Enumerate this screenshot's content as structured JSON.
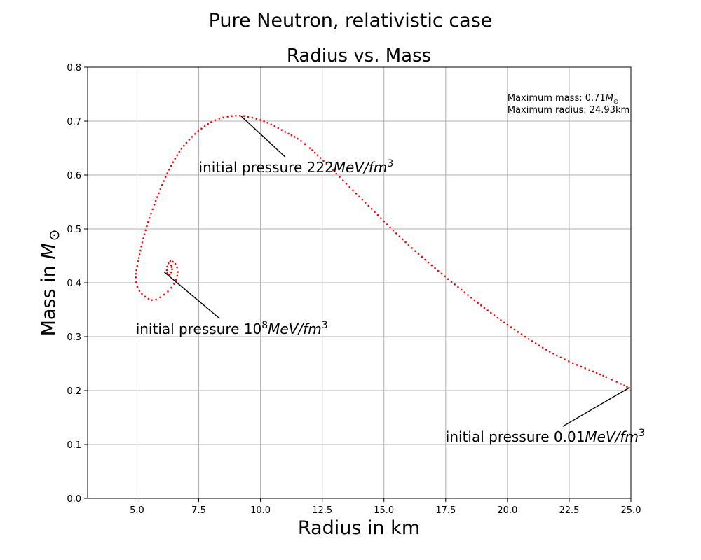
{
  "chart_data": {
    "type": "scatter",
    "suptitle": "Pure Neutron, relativistic case",
    "title": "Radius vs. Mass",
    "xlabel": "Radius in km",
    "ylabel_text": "Mass in ",
    "ylabel_math": "M",
    "ylabel_sub": "⊙",
    "xlim": [
      3.0,
      25.0
    ],
    "ylim": [
      0.0,
      0.8
    ],
    "xticks": [
      "5.0",
      "7.5",
      "10.0",
      "12.5",
      "15.0",
      "17.5",
      "20.0",
      "22.5",
      "25.0"
    ],
    "yticks": [
      "0.0",
      "0.1",
      "0.2",
      "0.3",
      "0.4",
      "0.5",
      "0.6",
      "0.7",
      "0.8"
    ],
    "grid": true,
    "marker_color": "#ff0000",
    "curve_knots": [
      [
        24.93,
        0.205
      ],
      [
        24.0,
        0.225
      ],
      [
        22.0,
        0.265
      ],
      [
        20.0,
        0.322
      ],
      [
        18.0,
        0.392
      ],
      [
        16.0,
        0.47
      ],
      [
        14.0,
        0.56
      ],
      [
        12.0,
        0.65
      ],
      [
        11.0,
        0.68
      ],
      [
        10.0,
        0.702
      ],
      [
        9.0,
        0.71
      ],
      [
        8.0,
        0.698
      ],
      [
        7.0,
        0.66
      ],
      [
        6.3,
        0.61
      ],
      [
        5.7,
        0.545
      ],
      [
        5.3,
        0.49
      ],
      [
        5.05,
        0.44
      ],
      [
        4.95,
        0.41
      ],
      [
        5.1,
        0.385
      ],
      [
        5.6,
        0.368
      ],
      [
        6.1,
        0.378
      ],
      [
        6.5,
        0.398
      ],
      [
        6.65,
        0.42
      ],
      [
        6.55,
        0.435
      ],
      [
        6.35,
        0.44
      ],
      [
        6.22,
        0.43
      ],
      [
        6.22,
        0.418
      ],
      [
        6.32,
        0.415
      ],
      [
        6.42,
        0.425
      ],
      [
        6.38,
        0.432
      ]
    ],
    "annotations": [
      {
        "prefix": "initial pressure 222",
        "math": "MeV/fm",
        "sup": "3",
        "point": [
          9.2,
          0.71
        ],
        "text_pos": [
          7.5,
          0.605
        ]
      },
      {
        "prefix": "initial pressure 10",
        "prefix_sup": "8",
        "math": "MeV/fm",
        "sup": "3",
        "point": [
          6.1,
          0.42
        ],
        "text_pos": [
          4.95,
          0.305
        ]
      },
      {
        "prefix": "initial pressure 0.01",
        "math": "MeV/fm",
        "sup": "3",
        "point": [
          24.93,
          0.205
        ],
        "text_pos": [
          17.5,
          0.105
        ]
      }
    ],
    "info_box": {
      "line1_prefix": "Maximum mass: 0.71",
      "line1_math": "M",
      "line1_sub": "⊙",
      "line2": "Maximum radius: 24.93km",
      "pos": [
        20.0,
        0.722
      ]
    }
  }
}
